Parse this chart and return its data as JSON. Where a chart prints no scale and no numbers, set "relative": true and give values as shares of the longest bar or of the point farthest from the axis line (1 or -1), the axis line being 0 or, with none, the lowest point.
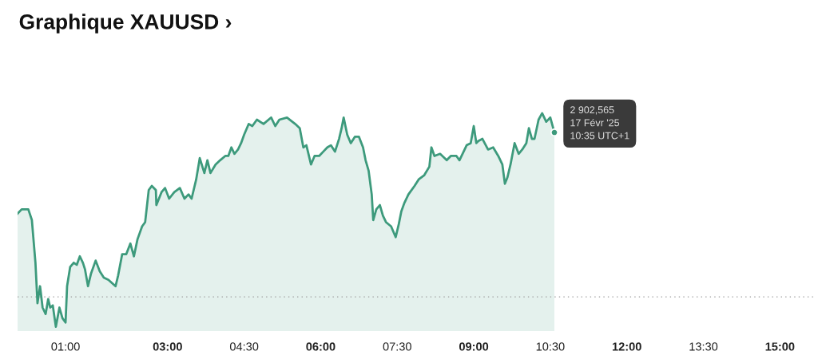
{
  "chart_data": {
    "type": "area",
    "title": "Graphique XAUUSD ›",
    "relative": true,
    "x": [
      0.06,
      0.14,
      0.27,
      0.34,
      0.41,
      0.45,
      0.5,
      0.55,
      0.61,
      0.66,
      0.7,
      0.75,
      0.81,
      0.88,
      0.94,
      1.0,
      1.03,
      1.09,
      1.16,
      1.22,
      1.28,
      1.34,
      1.38,
      1.44,
      1.5,
      1.59,
      1.67,
      1.75,
      1.84,
      1.98,
      2.03,
      2.11,
      2.19,
      2.27,
      2.34,
      2.41,
      2.5,
      2.56,
      2.63,
      2.69,
      2.77,
      2.78,
      2.88,
      2.95,
      3.03,
      3.13,
      3.24,
      3.33,
      3.41,
      3.47,
      3.56,
      3.63,
      3.72,
      3.78,
      3.84,
      3.94,
      4.03,
      4.13,
      4.19,
      4.25,
      4.31,
      4.38,
      4.44,
      4.5,
      4.59,
      4.66,
      4.75,
      4.88,
      5.03,
      5.11,
      5.19,
      5.34,
      5.5,
      5.59,
      5.66,
      5.72,
      5.81,
      5.88,
      5.97,
      6.05,
      6.13,
      6.2,
      6.28,
      6.36,
      6.41,
      6.45,
      6.52,
      6.59,
      6.67,
      6.75,
      6.83,
      6.88,
      6.94,
      7.0,
      7.03,
      7.09,
      7.16,
      7.22,
      7.28,
      7.38,
      7.47,
      7.53,
      7.58,
      7.64,
      7.72,
      7.84,
      7.92,
      8.03,
      8.13,
      8.17,
      8.23,
      8.34,
      8.47,
      8.55,
      8.66,
      8.72,
      8.78,
      8.86,
      8.94,
      9.0,
      9.05,
      9.09,
      9.17,
      9.28,
      9.38,
      9.48,
      9.56,
      9.61,
      9.66,
      9.72,
      9.8,
      9.88,
      9.95,
      10.03,
      10.08,
      10.14,
      10.19,
      10.27,
      10.34,
      10.42,
      10.5,
      10.58
    ],
    "values": [
      0.53,
      0.55,
      0.55,
      0.5,
      0.3,
      0.11,
      0.19,
      0.09,
      0.06,
      0.13,
      0.09,
      0.1,
      0.0,
      0.09,
      0.04,
      0.02,
      0.19,
      0.28,
      0.3,
      0.29,
      0.33,
      0.3,
      0.27,
      0.19,
      0.25,
      0.31,
      0.26,
      0.23,
      0.22,
      0.19,
      0.24,
      0.34,
      0.34,
      0.39,
      0.33,
      0.41,
      0.47,
      0.49,
      0.64,
      0.66,
      0.64,
      0.57,
      0.63,
      0.65,
      0.6,
      0.63,
      0.65,
      0.6,
      0.62,
      0.6,
      0.69,
      0.79,
      0.72,
      0.78,
      0.72,
      0.76,
      0.78,
      0.8,
      0.8,
      0.84,
      0.81,
      0.83,
      0.86,
      0.9,
      0.95,
      0.94,
      0.97,
      0.95,
      0.98,
      0.94,
      0.97,
      0.98,
      0.95,
      0.93,
      0.84,
      0.85,
      0.76,
      0.8,
      0.8,
      0.82,
      0.84,
      0.85,
      0.82,
      0.88,
      0.93,
      0.98,
      0.9,
      0.86,
      0.89,
      0.89,
      0.84,
      0.78,
      0.73,
      0.62,
      0.5,
      0.55,
      0.57,
      0.52,
      0.49,
      0.47,
      0.42,
      0.48,
      0.54,
      0.58,
      0.62,
      0.66,
      0.69,
      0.71,
      0.75,
      0.84,
      0.8,
      0.81,
      0.78,
      0.8,
      0.8,
      0.78,
      0.81,
      0.85,
      0.86,
      0.94,
      0.86,
      0.87,
      0.88,
      0.83,
      0.84,
      0.8,
      0.76,
      0.67,
      0.7,
      0.76,
      0.86,
      0.81,
      0.83,
      0.86,
      0.93,
      0.88,
      0.88,
      0.97,
      1.0,
      0.96,
      0.98,
      0.91
    ],
    "color": "#3d9a7c",
    "xlim": [
      0.06,
      15.69
    ],
    "xticks": [
      {
        "value": 1,
        "label": "01:00"
      },
      {
        "value": 3,
        "label": "03:00"
      },
      {
        "value": 4.5,
        "label": "04:30"
      },
      {
        "value": 6,
        "label": "06:00"
      },
      {
        "value": 7.5,
        "label": "07:30"
      },
      {
        "value": 9,
        "label": "09:00"
      },
      {
        "value": 10.5,
        "label": "10:30"
      },
      {
        "value": 12,
        "label": "12:00"
      },
      {
        "value": 13.5,
        "label": "13:30"
      },
      {
        "value": 15,
        "label": "15:00"
      }
    ],
    "tick_labels": "x",
    "ref_lines": [
      {
        "axis": "y",
        "value": 0.14,
        "label": null,
        "color": "#9e9e9e",
        "line_style": "dotted"
      }
    ],
    "annotations": [
      {
        "text": "2 902,565\n17 Févr '25\n10:35 UTC+1",
        "x": 10.58,
        "y": 0.91
      }
    ],
    "grid": false,
    "legend": false,
    "marker": "none",
    "line_style": "solid"
  }
}
